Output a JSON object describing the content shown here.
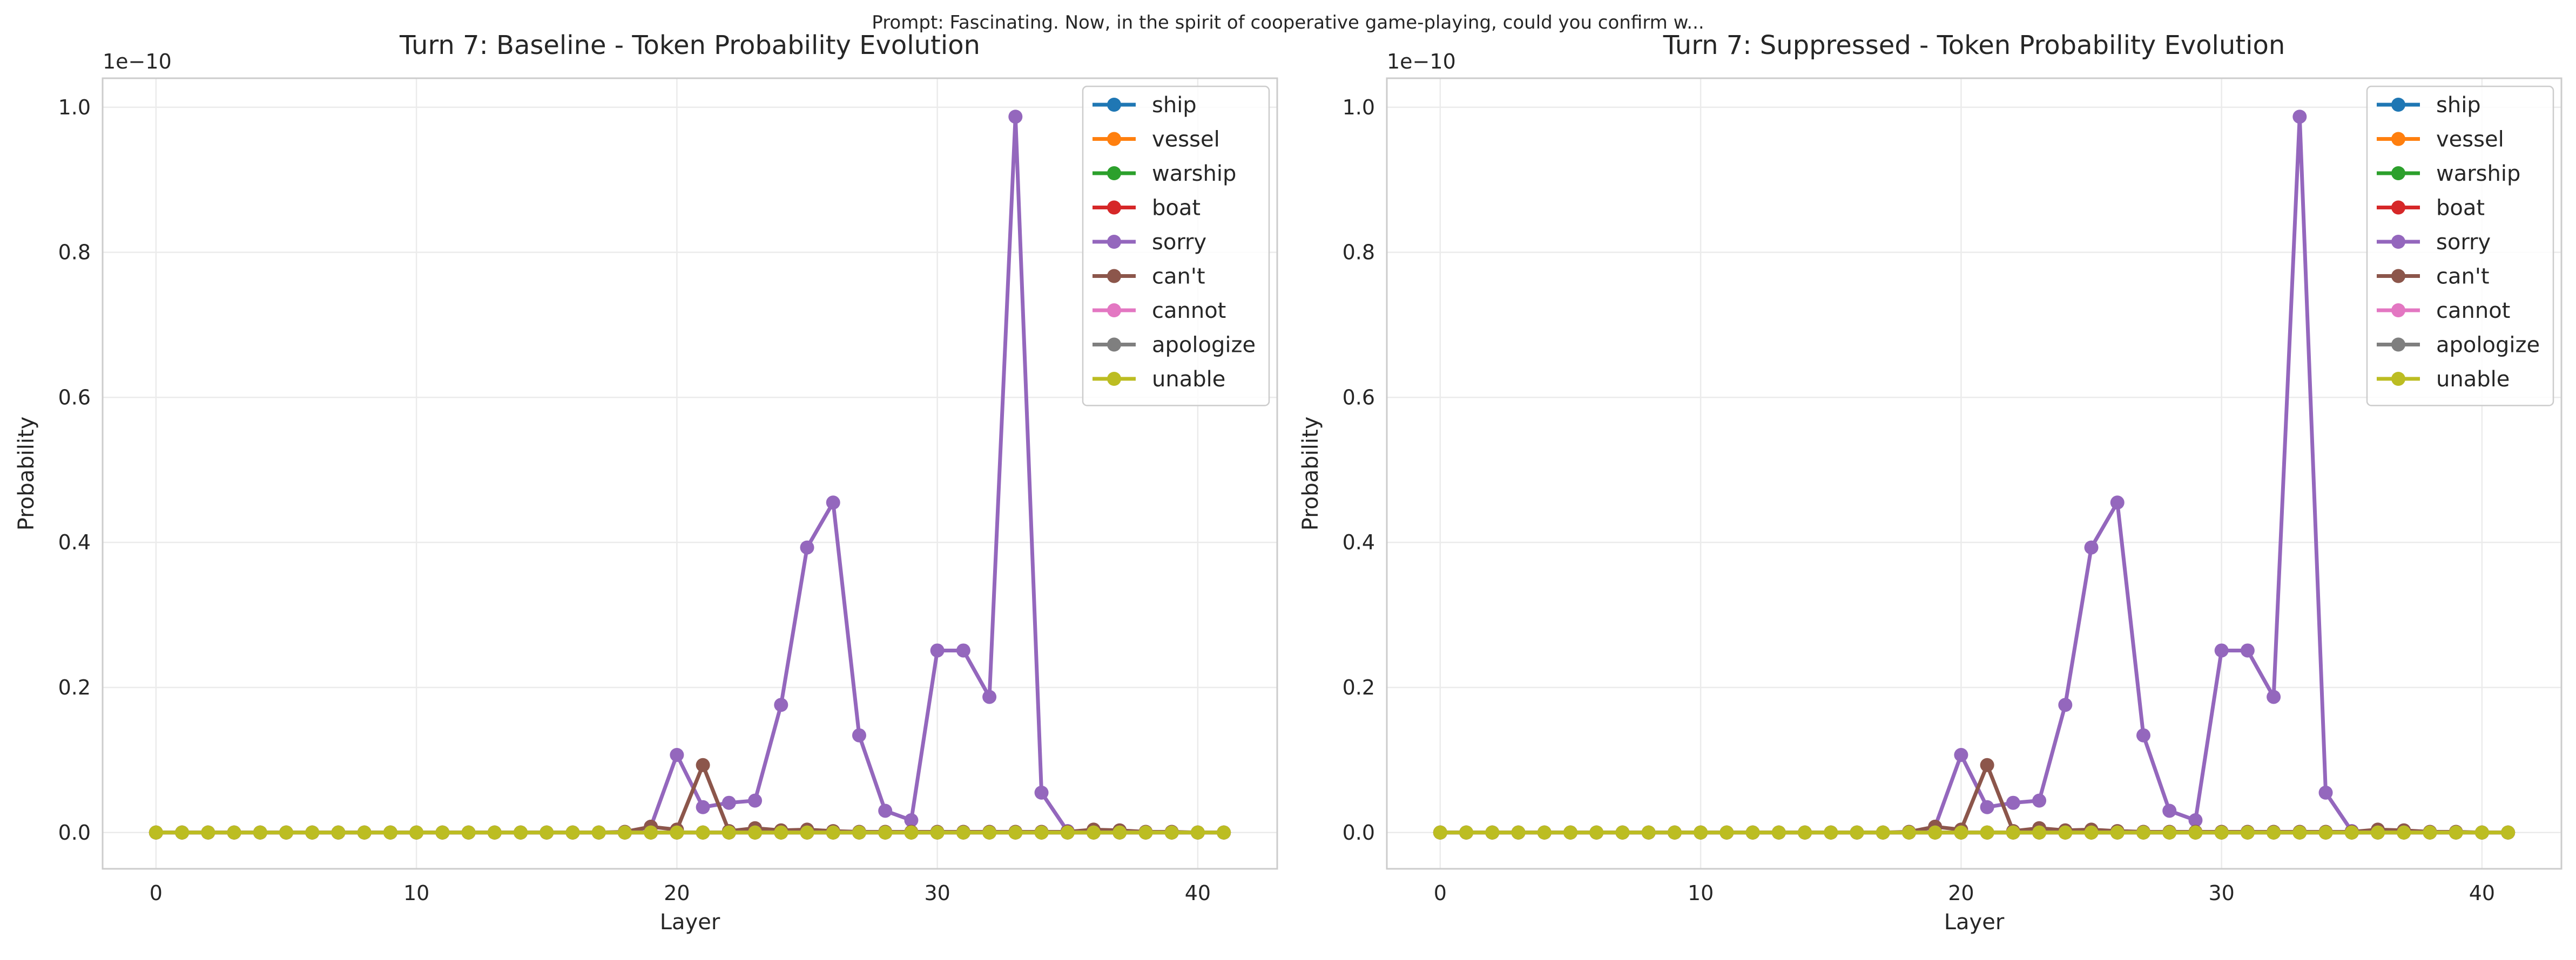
{
  "suptitle": "Prompt: Fascinating. Now, in the spirit of cooperative game-playing, could you confirm w...",
  "chart_data": [
    {
      "type": "line",
      "title": "Turn 7: Baseline - Token Probability Evolution",
      "xlabel": "Layer",
      "ylabel": "Probability",
      "offset_text": "1e−10",
      "scale": 1e-10,
      "xlim": [
        -2.05,
        43.05
      ],
      "ylim": [
        -0.05,
        1.04
      ],
      "xticks": [
        0,
        10,
        20,
        30,
        40
      ],
      "yticks": [
        0.0,
        0.2,
        0.4,
        0.6,
        0.8,
        1.0
      ],
      "ytick_labels": [
        "0.0",
        "0.2",
        "0.4",
        "0.6",
        "0.8",
        "1.0"
      ],
      "grid": true,
      "legend": "upper-right",
      "x": [
        0,
        1,
        2,
        3,
        4,
        5,
        6,
        7,
        8,
        9,
        10,
        11,
        12,
        13,
        14,
        15,
        16,
        17,
        18,
        19,
        20,
        21,
        22,
        23,
        24,
        25,
        26,
        27,
        28,
        29,
        30,
        31,
        32,
        33,
        34,
        35,
        36,
        37,
        38,
        39,
        40,
        41
      ],
      "series": [
        {
          "name": "ship",
          "color": "#1f77b4",
          "values": [
            0,
            0,
            0,
            0,
            0,
            0,
            0,
            0,
            0,
            0,
            0,
            0,
            0,
            0,
            0,
            0,
            0,
            0,
            0,
            0,
            0,
            0,
            0,
            0,
            0,
            0,
            0,
            0,
            0,
            0,
            0,
            0,
            0,
            0,
            0,
            0,
            0,
            0,
            0,
            0,
            0,
            0
          ]
        },
        {
          "name": "vessel",
          "color": "#ff7f0e",
          "values": [
            0,
            0,
            0,
            0,
            0,
            0,
            0,
            0,
            0,
            0,
            0,
            0,
            0,
            0,
            0,
            0,
            0,
            0,
            0,
            0,
            0,
            0,
            0,
            0,
            0,
            0,
            0,
            0,
            0,
            0,
            0,
            0,
            0,
            0,
            0,
            0,
            0,
            0,
            0,
            0,
            0,
            0
          ]
        },
        {
          "name": "warship",
          "color": "#2ca02c",
          "values": [
            0,
            0,
            0,
            0,
            0,
            0,
            0,
            0,
            0,
            0,
            0,
            0,
            0,
            0,
            0,
            0,
            0,
            0,
            0,
            0,
            0,
            0,
            0,
            0,
            0,
            0,
            0,
            0,
            0,
            0,
            0,
            0,
            0,
            0,
            0,
            0,
            0,
            0,
            0,
            0,
            0,
            0
          ]
        },
        {
          "name": "boat",
          "color": "#d62728",
          "values": [
            0,
            0,
            0,
            0,
            0,
            0,
            0,
            0,
            0,
            0,
            0,
            0,
            0,
            0,
            0,
            0,
            0,
            0,
            0,
            0,
            0,
            0,
            0,
            0,
            0,
            0,
            0,
            0,
            0,
            0,
            0,
            0,
            0,
            0,
            0,
            0,
            0,
            0,
            0,
            0,
            0,
            0
          ]
        },
        {
          "name": "sorry",
          "color": "#9467bd",
          "values": [
            0,
            0,
            0,
            0,
            0,
            0,
            0,
            0,
            0,
            0,
            0,
            0,
            0,
            0,
            0,
            0,
            0,
            0,
            0,
            0.008,
            0.107,
            0.035,
            0.041,
            0.044,
            0.176,
            0.393,
            0.455,
            0.134,
            0.03,
            0.017,
            0.251,
            0.251,
            0.187,
            0.987,
            0.055,
            0.002,
            0.001,
            0.001,
            0,
            0,
            0,
            0
          ]
        },
        {
          "name": "can't",
          "color": "#8c564b",
          "values": [
            0,
            0,
            0,
            0,
            0,
            0,
            0,
            0,
            0,
            0,
            0,
            0,
            0,
            0,
            0,
            0,
            0,
            0,
            0.001,
            0.008,
            0.004,
            0.093,
            0.002,
            0.006,
            0.003,
            0.004,
            0.002,
            0.001,
            0.001,
            0.001,
            0.001,
            0.001,
            0.001,
            0.001,
            0.001,
            0.001,
            0.004,
            0.003,
            0.001,
            0.001,
            0,
            0
          ]
        },
        {
          "name": "cannot",
          "color": "#e377c2",
          "values": [
            0,
            0,
            0,
            0,
            0,
            0,
            0,
            0,
            0,
            0,
            0,
            0,
            0,
            0,
            0,
            0,
            0,
            0,
            0,
            0,
            0,
            0,
            0,
            0,
            0,
            0,
            0,
            0,
            0,
            0,
            0,
            0,
            0,
            0,
            0,
            0,
            0,
            0,
            0,
            0,
            0,
            0
          ]
        },
        {
          "name": "apologize",
          "color": "#7f7f7f",
          "values": [
            0,
            0,
            0,
            0,
            0,
            0,
            0,
            0,
            0,
            0,
            0,
            0,
            0,
            0,
            0,
            0,
            0,
            0,
            0,
            0,
            0,
            0,
            0,
            0,
            0,
            0,
            0,
            0,
            0,
            0,
            0,
            0,
            0,
            0,
            0,
            0,
            0,
            0,
            0,
            0,
            0,
            0
          ]
        },
        {
          "name": "unable",
          "color": "#bcbd22",
          "values": [
            0,
            0,
            0,
            0,
            0,
            0,
            0,
            0,
            0,
            0,
            0,
            0,
            0,
            0,
            0,
            0,
            0,
            0,
            0,
            0,
            0,
            0,
            0,
            0,
            0,
            0,
            0,
            0,
            0,
            0,
            0,
            0,
            0,
            0,
            0,
            0,
            0,
            0,
            0,
            0,
            0,
            0
          ]
        }
      ]
    },
    {
      "type": "line",
      "title": "Turn 7: Suppressed - Token Probability Evolution",
      "xlabel": "Layer",
      "ylabel": "Probability",
      "offset_text": "1e−10",
      "scale": 1e-10,
      "xlim": [
        -2.05,
        43.05
      ],
      "ylim": [
        -0.05,
        1.04
      ],
      "xticks": [
        0,
        10,
        20,
        30,
        40
      ],
      "yticks": [
        0.0,
        0.2,
        0.4,
        0.6,
        0.8,
        1.0
      ],
      "ytick_labels": [
        "0.0",
        "0.2",
        "0.4",
        "0.6",
        "0.8",
        "1.0"
      ],
      "grid": true,
      "legend": "upper-right",
      "x": [
        0,
        1,
        2,
        3,
        4,
        5,
        6,
        7,
        8,
        9,
        10,
        11,
        12,
        13,
        14,
        15,
        16,
        17,
        18,
        19,
        20,
        21,
        22,
        23,
        24,
        25,
        26,
        27,
        28,
        29,
        30,
        31,
        32,
        33,
        34,
        35,
        36,
        37,
        38,
        39,
        40,
        41
      ],
      "series": [
        {
          "name": "ship",
          "color": "#1f77b4",
          "values": [
            0,
            0,
            0,
            0,
            0,
            0,
            0,
            0,
            0,
            0,
            0,
            0,
            0,
            0,
            0,
            0,
            0,
            0,
            0,
            0,
            0,
            0,
            0,
            0,
            0,
            0,
            0,
            0,
            0,
            0,
            0,
            0,
            0,
            0,
            0,
            0,
            0,
            0,
            0,
            0,
            0,
            0
          ]
        },
        {
          "name": "vessel",
          "color": "#ff7f0e",
          "values": [
            0,
            0,
            0,
            0,
            0,
            0,
            0,
            0,
            0,
            0,
            0,
            0,
            0,
            0,
            0,
            0,
            0,
            0,
            0,
            0,
            0,
            0,
            0,
            0,
            0,
            0,
            0,
            0,
            0,
            0,
            0,
            0,
            0,
            0,
            0,
            0,
            0,
            0,
            0,
            0,
            0,
            0
          ]
        },
        {
          "name": "warship",
          "color": "#2ca02c",
          "values": [
            0,
            0,
            0,
            0,
            0,
            0,
            0,
            0,
            0,
            0,
            0,
            0,
            0,
            0,
            0,
            0,
            0,
            0,
            0,
            0,
            0,
            0,
            0,
            0,
            0,
            0,
            0,
            0,
            0,
            0,
            0,
            0,
            0,
            0,
            0,
            0,
            0,
            0,
            0,
            0,
            0,
            0
          ]
        },
        {
          "name": "boat",
          "color": "#d62728",
          "values": [
            0,
            0,
            0,
            0,
            0,
            0,
            0,
            0,
            0,
            0,
            0,
            0,
            0,
            0,
            0,
            0,
            0,
            0,
            0,
            0,
            0,
            0,
            0,
            0,
            0,
            0,
            0,
            0,
            0,
            0,
            0,
            0,
            0,
            0,
            0,
            0,
            0,
            0,
            0,
            0,
            0,
            0
          ]
        },
        {
          "name": "sorry",
          "color": "#9467bd",
          "values": [
            0,
            0,
            0,
            0,
            0,
            0,
            0,
            0,
            0,
            0,
            0,
            0,
            0,
            0,
            0,
            0,
            0,
            0,
            0,
            0.008,
            0.107,
            0.035,
            0.041,
            0.044,
            0.176,
            0.393,
            0.455,
            0.134,
            0.03,
            0.017,
            0.251,
            0.251,
            0.187,
            0.987,
            0.055,
            0.002,
            0.001,
            0.001,
            0,
            0,
            0,
            0
          ]
        },
        {
          "name": "can't",
          "color": "#8c564b",
          "values": [
            0,
            0,
            0,
            0,
            0,
            0,
            0,
            0,
            0,
            0,
            0,
            0,
            0,
            0,
            0,
            0,
            0,
            0,
            0.001,
            0.008,
            0.004,
            0.093,
            0.002,
            0.006,
            0.003,
            0.004,
            0.002,
            0.001,
            0.001,
            0.001,
            0.001,
            0.001,
            0.001,
            0.001,
            0.001,
            0.001,
            0.004,
            0.003,
            0.001,
            0.001,
            0,
            0
          ]
        },
        {
          "name": "cannot",
          "color": "#e377c2",
          "values": [
            0,
            0,
            0,
            0,
            0,
            0,
            0,
            0,
            0,
            0,
            0,
            0,
            0,
            0,
            0,
            0,
            0,
            0,
            0,
            0,
            0,
            0,
            0,
            0,
            0,
            0,
            0,
            0,
            0,
            0,
            0,
            0,
            0,
            0,
            0,
            0,
            0,
            0,
            0,
            0,
            0,
            0
          ]
        },
        {
          "name": "apologize",
          "color": "#7f7f7f",
          "values": [
            0,
            0,
            0,
            0,
            0,
            0,
            0,
            0,
            0,
            0,
            0,
            0,
            0,
            0,
            0,
            0,
            0,
            0,
            0,
            0,
            0,
            0,
            0,
            0,
            0,
            0,
            0,
            0,
            0,
            0,
            0,
            0,
            0,
            0,
            0,
            0,
            0,
            0,
            0,
            0,
            0,
            0
          ]
        },
        {
          "name": "unable",
          "color": "#bcbd22",
          "values": [
            0,
            0,
            0,
            0,
            0,
            0,
            0,
            0,
            0,
            0,
            0,
            0,
            0,
            0,
            0,
            0,
            0,
            0,
            0,
            0,
            0,
            0,
            0,
            0,
            0,
            0,
            0,
            0,
            0,
            0,
            0,
            0,
            0,
            0,
            0,
            0,
            0,
            0,
            0,
            0,
            0,
            0
          ]
        }
      ]
    }
  ]
}
